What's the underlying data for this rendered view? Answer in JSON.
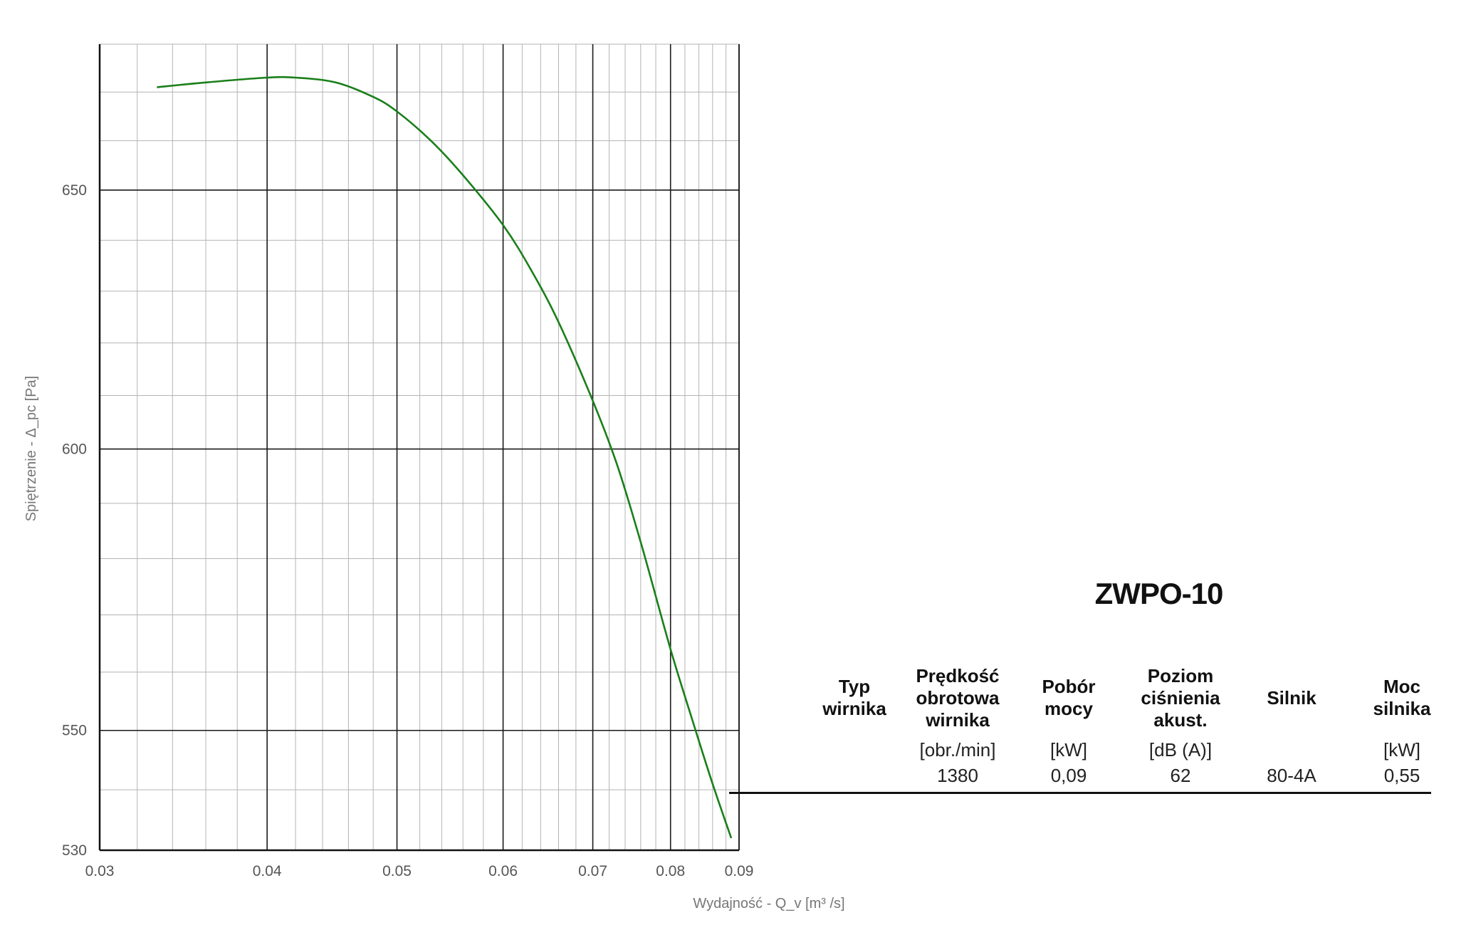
{
  "chart_data": {
    "type": "line",
    "title": "",
    "xlabel": "Wydajność - Q_v [m³ /s]",
    "ylabel": "Spiętrzenie - Δ_pc [Pa]",
    "xlim": [
      0.03,
      0.09
    ],
    "ylim": [
      530,
      680
    ],
    "x_scale": "log",
    "y_scale": "log",
    "x_ticks": [
      0.03,
      0.04,
      0.05,
      0.06,
      0.07,
      0.08,
      0.09
    ],
    "x_tick_labels": [
      "0.03",
      "0.04",
      "0.05",
      "0.06",
      "0.07",
      "0.08",
      "0.09"
    ],
    "y_ticks": [
      530,
      550,
      600,
      650
    ],
    "y_tick_labels": [
      "530",
      "550",
      "600",
      "650"
    ],
    "grid": true,
    "line_color": "#1a7f1a",
    "series": [
      {
        "name": "",
        "x": [
          0.0331,
          0.036,
          0.04,
          0.042,
          0.045,
          0.048,
          0.05,
          0.053,
          0.056,
          0.06,
          0.063,
          0.066,
          0.07,
          0.073,
          0.076,
          0.08,
          0.083,
          0.086,
          0.0888
        ],
        "y": [
          671,
          672,
          673,
          673,
          672,
          669,
          666,
          660,
          653,
          643,
          634,
          624,
          609,
          597,
          583,
          564,
          552,
          541,
          532
        ]
      }
    ]
  },
  "info": {
    "title": "ZWPO-10",
    "columns": [
      {
        "header": "Typ\nwirnika",
        "unit": "",
        "value": ""
      },
      {
        "header": "Prędkość\nobrotowa\nwirnika",
        "unit": "[obr./min]",
        "value": "1380"
      },
      {
        "header": "Pobór\nmocy",
        "unit": "[kW]",
        "value": "0,09"
      },
      {
        "header": "Poziom\nciśnienia\nakust.",
        "unit": "[dB (A)]",
        "value": "62"
      },
      {
        "header": "Silnik",
        "unit": "",
        "value": "80-4A"
      },
      {
        "header": "Moc\nsilnika",
        "unit": "[kW]",
        "value": "0,55"
      }
    ]
  }
}
